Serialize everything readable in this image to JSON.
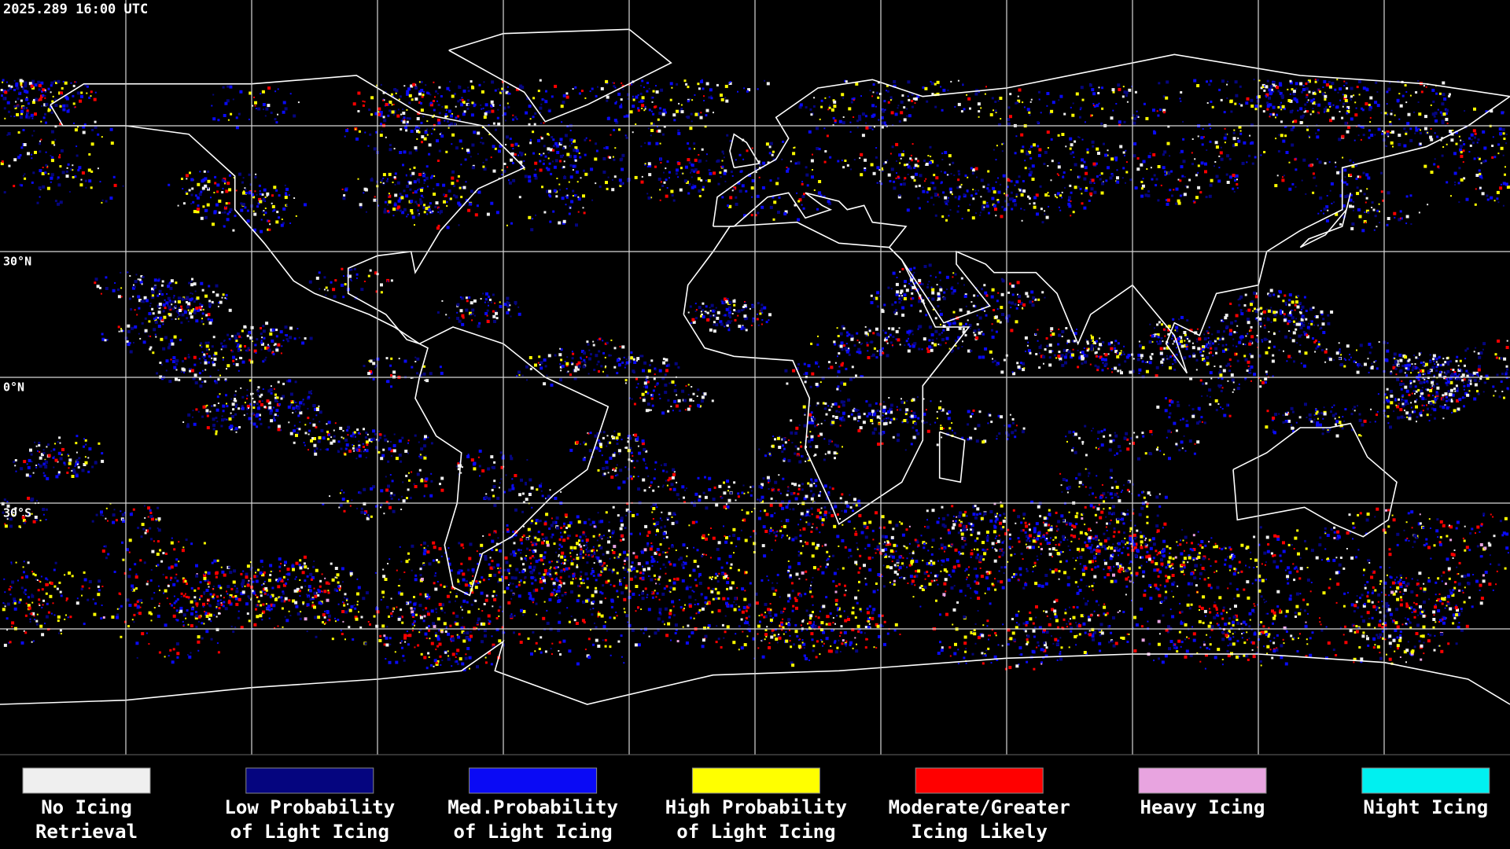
{
  "header": {
    "timestamp": "2025.289 16:00 UTC"
  },
  "map": {
    "latitude_labels": [
      "30°N",
      "0°N",
      "30°S"
    ]
  },
  "legend": {
    "items": [
      {
        "lines": [
          "No Icing",
          "Retrieval"
        ],
        "color": "#efefef"
      },
      {
        "lines": [
          "Low Probability",
          "of Light Icing"
        ],
        "color": "#05057f"
      },
      {
        "lines": [
          "Med.Probability",
          "of Light Icing"
        ],
        "color": "#0a0af5"
      },
      {
        "lines": [
          "High Probability",
          "of Light Icing"
        ],
        "color": "#ffff00"
      },
      {
        "lines": [
          "Moderate/Greater",
          "Icing Likely"
        ],
        "color": "#ff0000"
      },
      {
        "lines": [
          "Heavy Icing"
        ],
        "color": "#e8a4e0"
      },
      {
        "lines": [
          "Night Icing"
        ],
        "color": "#00f0f0"
      }
    ]
  }
}
